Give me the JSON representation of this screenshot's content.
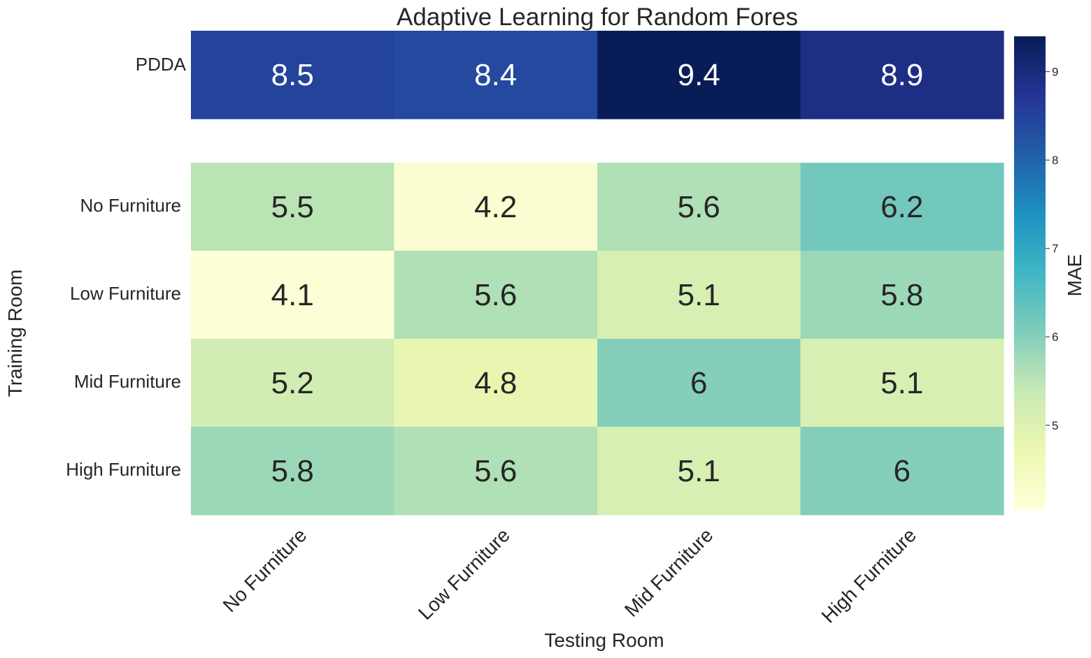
{
  "chart_data": {
    "type": "heatmap",
    "title": "Adaptive Learning for Random Fores",
    "xlabel": "Testing Room",
    "ylabel": "Training Room",
    "x_categories": [
      "No Furniture",
      "Low Furniture",
      "Mid Furniture",
      "High Furniture"
    ],
    "top_block": {
      "rows": [
        "PDDA"
      ],
      "values": [
        [
          8.5,
          8.4,
          9.4,
          8.9
        ]
      ]
    },
    "main_block": {
      "rows": [
        "No Furniture",
        "Low Furniture",
        "Mid Furniture",
        "High Furniture"
      ],
      "values": [
        [
          5.5,
          4.2,
          5.6,
          6.2
        ],
        [
          4.1,
          5.6,
          5.1,
          5.8
        ],
        [
          5.2,
          4.8,
          6,
          5.1
        ],
        [
          5.8,
          5.6,
          5.1,
          6
        ]
      ]
    },
    "colorbar": {
      "label": "MAE",
      "range": [
        4.05,
        9.4
      ],
      "ticks": [
        5,
        6,
        7,
        8,
        9
      ],
      "colormap": "YlGnBu",
      "colors": [
        "#ffffd9",
        "#edf8b1",
        "#c7e9b4",
        "#7fcdbb",
        "#41b6c4",
        "#1d91c0",
        "#225ea8",
        "#253494",
        "#081d58"
      ]
    },
    "grid": false
  }
}
